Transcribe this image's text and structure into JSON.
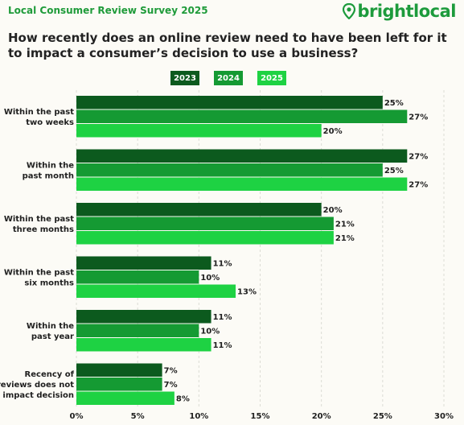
{
  "header": {
    "survey_title": "Local Consumer Review Survey 2025",
    "logo_text": "brightlocal"
  },
  "chart_data": {
    "type": "bar",
    "orientation": "horizontal",
    "title": "How recently does an online review need to have been left for it to impact a consumer’s decision to use a business?",
    "categories": [
      [
        "Within the past",
        "two weeks"
      ],
      [
        "Within the",
        "past month"
      ],
      [
        "Within the past",
        "three months"
      ],
      [
        "Within the past",
        "six months"
      ],
      [
        "Within the",
        "past year"
      ],
      [
        "Recency of",
        "reviews does not",
        "impact decision"
      ]
    ],
    "series": [
      {
        "name": "2023",
        "color": "#0c5a1e",
        "values": [
          25,
          27,
          20,
          11,
          11,
          7
        ]
      },
      {
        "name": "2024",
        "color": "#159a33",
        "values": [
          27,
          25,
          21,
          10,
          10,
          7
        ]
      },
      {
        "name": "2025",
        "color": "#1ed243",
        "values": [
          20,
          27,
          21,
          13,
          11,
          8
        ]
      }
    ],
    "xlim": [
      0,
      30
    ],
    "xticks": [
      0,
      5,
      10,
      15,
      20,
      25,
      30
    ],
    "value_suffix": "%",
    "legend_position": "top",
    "grid": true
  }
}
